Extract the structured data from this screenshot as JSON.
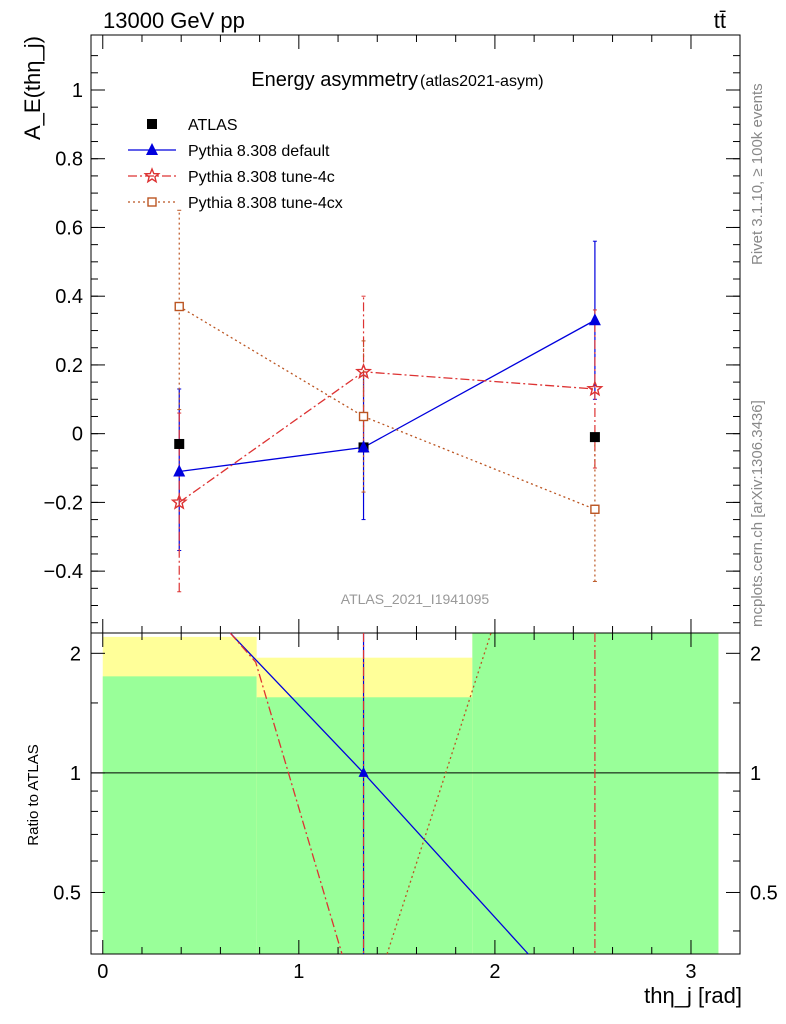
{
  "header": {
    "left": "13000 GeV pp",
    "right": "tt̄"
  },
  "side_labels": {
    "rivet": "Rivet 3.1.10, ≥ 100k events",
    "mcplots": "mcplots.cern.ch [arXiv:1306.3436]"
  },
  "chart_data": [
    {
      "type": "scatter",
      "title": "Energy asymmetry",
      "subtitle": "(atlas2021-asym)",
      "ylabel": "A_E(thη_j)",
      "watermark": "ATLAS_2021_I1941095",
      "xlim": [
        -0.06,
        3.25
      ],
      "ylim": [
        -0.58,
        1.16
      ],
      "legend_position": "top-left",
      "x_ticks": [
        0,
        1,
        2,
        3
      ],
      "y_ticks": [
        -0.4,
        -0.2,
        0,
        0.2,
        0.4,
        0.6,
        0.8,
        1
      ],
      "y_tick_labels": [
        "−0.4",
        "−0.2",
        "0",
        "0.2",
        "0.4",
        "0.6",
        "0.8",
        "1"
      ],
      "series": [
        {
          "name": "ATLAS",
          "color": "#000000",
          "marker": "filled-square",
          "line": "none",
          "x": [
            0.39,
            1.33,
            2.51
          ],
          "y": [
            -0.03,
            -0.04,
            -0.01
          ],
          "err_lo": [
            0.0,
            0.0,
            0.0
          ],
          "err_hi": [
            0.0,
            0.0,
            0.0
          ]
        },
        {
          "name": "Pythia 8.308 default",
          "color": "#0000dd",
          "marker": "filled-triangle",
          "line": "solid",
          "x": [
            0.39,
            1.33,
            2.51
          ],
          "y": [
            -0.11,
            -0.04,
            0.33
          ],
          "err_lo": [
            0.23,
            0.21,
            0.23
          ],
          "err_hi": [
            0.24,
            0.21,
            0.23
          ]
        },
        {
          "name": "Pythia 8.308 tune-4c",
          "color": "#dd3333",
          "marker": "open-star",
          "line": "dashdot",
          "x": [
            0.39,
            1.33,
            2.51
          ],
          "y": [
            -0.2,
            0.18,
            0.13
          ],
          "err_lo": [
            0.26,
            0.22,
            0.23
          ],
          "err_hi": [
            0.26,
            0.22,
            0.23
          ]
        },
        {
          "name": "Pythia 8.308 tune-4cx",
          "color": "#bb5522",
          "marker": "open-square",
          "line": "dotted",
          "x": [
            0.39,
            1.33,
            2.51
          ],
          "y": [
            0.37,
            0.05,
            -0.22
          ],
          "err_lo": [
            0.3,
            0.22,
            0.21
          ],
          "err_hi": [
            0.28,
            0.22,
            0.21
          ]
        }
      ]
    },
    {
      "type": "line",
      "ylabel": "Ratio to ATLAS",
      "xlabel": "thη_j [rad]",
      "xlim": [
        -0.06,
        3.25
      ],
      "ylim": [
        0.35,
        2.25
      ],
      "x_ticks": [
        0,
        1,
        2,
        3
      ],
      "y_ticks": [
        0.5,
        1,
        2
      ],
      "bands": [
        {
          "x": [
            0.0,
            0.785
          ],
          "yellow": [
            0.0,
            2.2
          ],
          "green": [
            0.0,
            1.75
          ]
        },
        {
          "x": [
            0.785,
            1.885
          ],
          "yellow": [
            0.55,
            1.95
          ],
          "green": [
            0.0,
            1.55
          ]
        },
        {
          "x": [
            1.885,
            3.14
          ],
          "yellow": [
            0.0,
            2.3
          ],
          "green": [
            0.0,
            2.3
          ]
        }
      ],
      "band_colors": {
        "yellow": "#ffff99",
        "green": "#99ff99"
      },
      "series": [
        {
          "name": "Pythia 8.308 default",
          "color": "#0000dd",
          "dash": "",
          "points": [
            [
              0.65,
              2.3
            ],
            [
              1.33,
              1.0
            ],
            [
              2.17,
              0.35
            ]
          ]
        },
        {
          "name": "Pythia 8.308 tune-4c",
          "color": "#dd3333",
          "dash": "9,3,2,3",
          "points": [
            [
              0.65,
              2.3
            ],
            [
              0.78,
              1.9
            ],
            [
              1.22,
              0.35
            ]
          ]
        },
        {
          "name": "Pythia 8.308 tune-4cx",
          "color": "#bb5522",
          "dash": "2,3",
          "points": [
            [
              1.45,
              0.35
            ],
            [
              1.98,
              2.3
            ]
          ]
        }
      ],
      "vertical_lines": [
        {
          "x": 1.33,
          "color": "#0000dd",
          "dash": ""
        },
        {
          "x": 1.33,
          "color": "#dd3333",
          "dash": "9,3,2,3"
        },
        {
          "x": 2.51,
          "color": "#dd3333",
          "dash": "9,3,2,3"
        }
      ],
      "marker": {
        "x": 1.33,
        "y": 1.0,
        "color": "#0000dd"
      },
      "reference_line": 1
    }
  ]
}
